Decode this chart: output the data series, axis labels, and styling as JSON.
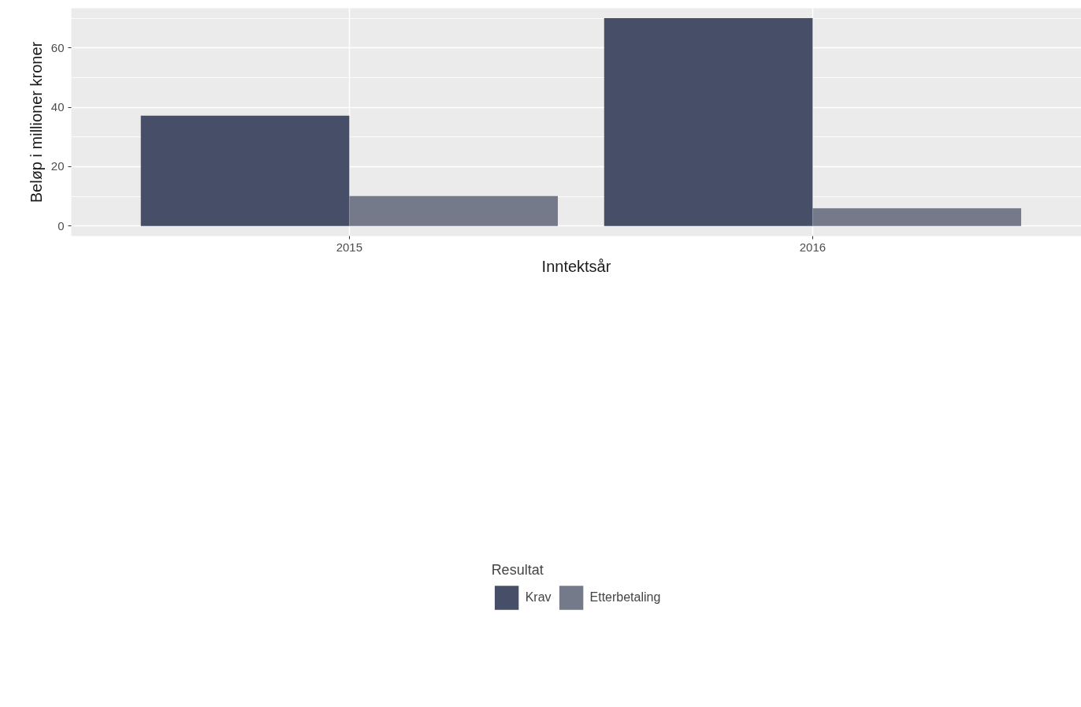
{
  "chart_data": {
    "type": "bar",
    "xlabel": "Inntektsår",
    "ylabel": "Beløp i millioner kroner",
    "legend_title": "Resultat",
    "categories": [
      "2015",
      "2016"
    ],
    "series": [
      {
        "name": "Krav",
        "color": "#464f67",
        "values": [
          37.2,
          70.1
        ]
      },
      {
        "name": "Etterbetaling",
        "color": "#757a8b",
        "values": [
          10.1,
          6.0
        ]
      }
    ],
    "ylim": [
      -3.4,
      73.4
    ],
    "yticks": [
      0,
      20,
      40,
      60
    ],
    "grid": true,
    "legend": "bottom"
  }
}
